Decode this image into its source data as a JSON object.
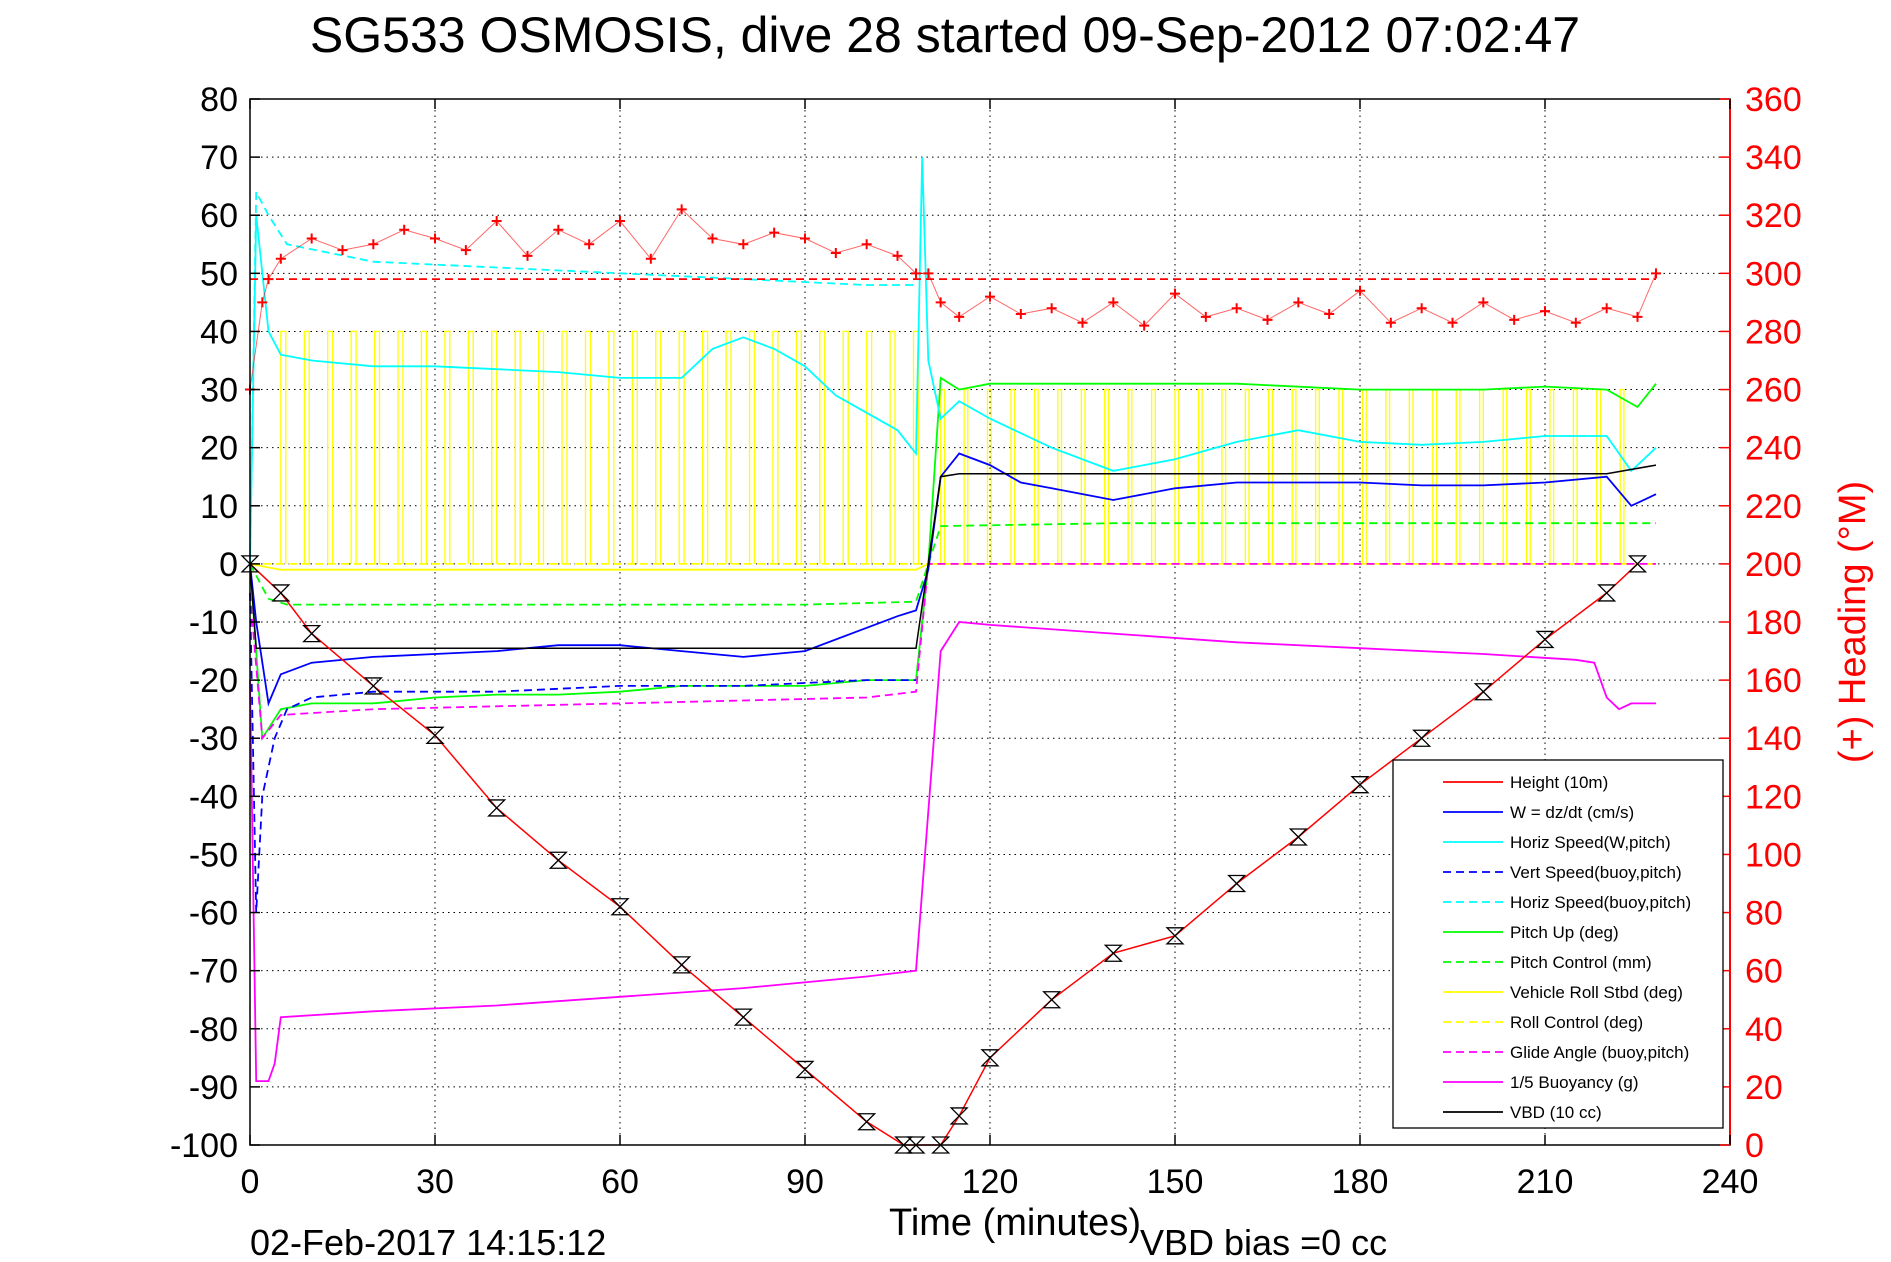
{
  "chart_data": {
    "type": "line",
    "title": "SG533 OSMOSIS, dive 28 started 09-Sep-2012 07:02:47",
    "xlabel": "Time (minutes)",
    "ylabel": "",
    "y2label": "(+) Heading (°M)",
    "footer_left": "02-Feb-2017 14:15:12",
    "footer_right": "VBD bias =0 cc",
    "xlim": [
      0,
      240
    ],
    "ylim": [
      -100,
      80
    ],
    "y2lim": [
      0,
      360
    ],
    "grid": true,
    "legend_position": "bottom-right",
    "x_ticks": [
      "0",
      "30",
      "60",
      "90",
      "120",
      "150",
      "180",
      "210",
      "240"
    ],
    "y_ticks": [
      "80",
      "70",
      "60",
      "50",
      "40",
      "30",
      "20",
      "10",
      "0",
      "-10",
      "-20",
      "-30",
      "-40",
      "-50",
      "-60",
      "-70",
      "-80",
      "-90",
      "-100"
    ],
    "y2_ticks": [
      "360",
      "340",
      "320",
      "300",
      "280",
      "260",
      "240",
      "220",
      "200",
      "180",
      "160",
      "140",
      "120",
      "100",
      "80",
      "60",
      "40",
      "20",
      "0"
    ],
    "colors": {
      "height": "#ff0000",
      "w": "#0000ff",
      "horiz_speed": "#00ffff",
      "vert_speed_buoy": "#0000ff",
      "horiz_speed_buoy": "#00ffff",
      "pitch_up": "#00ff00",
      "pitch_control": "#00ff00",
      "roll": "#ffff00",
      "roll_control": "#ffff00",
      "glide_angle": "#ff00ff",
      "buoyancy": "#ff00ff",
      "vbd": "#000000",
      "heading": "#ff0000",
      "right_axis": "#ff0000"
    },
    "series": [
      {
        "key": "height",
        "name": "Height (10m)",
        "style": "solid",
        "color": "#ff0000",
        "x": [
          0,
          5,
          10,
          20,
          30,
          40,
          50,
          60,
          70,
          80,
          90,
          100,
          106,
          108,
          112,
          115,
          120,
          130,
          140,
          150,
          160,
          170,
          180,
          190,
          200,
          210,
          220,
          225
        ],
        "y": [
          0,
          -5,
          -12,
          -21,
          -29.5,
          -42,
          -51,
          -59,
          -69,
          -78,
          -87,
          -96,
          -100,
          -100,
          -100,
          -95,
          -85,
          -75,
          -67,
          -64,
          -55,
          -47,
          -38,
          -30,
          -22,
          -13,
          -5,
          0
        ]
      },
      {
        "key": "w",
        "name": "W = dz/dt (cm/s)",
        "style": "solid",
        "color": "#0000ff",
        "x": [
          0,
          1,
          3,
          5,
          10,
          20,
          30,
          40,
          50,
          60,
          70,
          80,
          90,
          100,
          105,
          108,
          110,
          112,
          115,
          120,
          125,
          130,
          140,
          150,
          160,
          170,
          180,
          190,
          200,
          210,
          220,
          224,
          228
        ],
        "y": [
          0,
          -10,
          -24,
          -19,
          -17,
          -16,
          -15.5,
          -15,
          -14,
          -14,
          -15,
          -16,
          -15,
          -11,
          -9,
          -8,
          -1,
          15,
          19,
          17,
          14,
          13,
          11,
          13,
          14,
          14,
          14,
          13.5,
          13.5,
          14,
          15,
          10,
          12
        ]
      },
      {
        "key": "horiz_speed",
        "name": "Horiz Speed(W,pitch)",
        "style": "solid",
        "color": "#00ffff",
        "x": [
          0,
          1,
          3,
          5,
          10,
          20,
          30,
          40,
          50,
          60,
          70,
          75,
          80,
          85,
          90,
          95,
          100,
          105,
          108,
          109,
          110,
          111,
          112,
          115,
          120,
          130,
          140,
          150,
          160,
          170,
          180,
          190,
          200,
          210,
          220,
          224,
          228
        ],
        "y": [
          0,
          60,
          40,
          36,
          35,
          34,
          34,
          33.5,
          33,
          32,
          32,
          37,
          39,
          37,
          34,
          29,
          26,
          23,
          19,
          70,
          35,
          30,
          25,
          28,
          25,
          20,
          16,
          18,
          21,
          23,
          21,
          20.5,
          21,
          22,
          22,
          16,
          20
        ]
      },
      {
        "key": "vert_speed_buoy",
        "name": "Vert Speed(buoy,pitch)",
        "style": "dashed",
        "color": "#0000ff",
        "x": [
          0,
          1,
          2,
          4,
          6,
          10,
          20,
          40,
          60,
          80,
          100,
          108
        ],
        "y": [
          -5,
          -60,
          -40,
          -30,
          -25,
          -23,
          -22,
          -22,
          -21,
          -21,
          -20,
          -20
        ]
      },
      {
        "key": "horiz_speed_buoy",
        "name": "Horiz Speed(buoy,pitch)",
        "style": "dashed",
        "color": "#00ffff",
        "x": [
          0,
          1,
          3,
          6,
          20,
          40,
          60,
          80,
          100,
          108
        ],
        "y": [
          0,
          64,
          60,
          55,
          52,
          51,
          50,
          49,
          48,
          48
        ]
      },
      {
        "key": "pitch_up",
        "name": "Pitch Up (deg)",
        "style": "solid",
        "color": "#00ff00",
        "x": [
          0,
          2,
          5,
          10,
          20,
          30,
          40,
          50,
          60,
          70,
          80,
          90,
          100,
          108,
          110,
          112,
          115,
          120,
          140,
          160,
          180,
          200,
          210,
          220,
          225,
          228
        ],
        "y": [
          0,
          -30,
          -25,
          -24,
          -24,
          -23,
          -22.5,
          -22.5,
          -22,
          -21,
          -21,
          -21,
          -20,
          -20,
          0,
          32,
          30,
          31,
          31,
          31,
          30,
          30,
          30.5,
          30,
          27,
          31
        ]
      },
      {
        "key": "pitch_control",
        "name": "Pitch Control (mm)",
        "style": "dashed",
        "color": "#00ff00",
        "x": [
          0,
          3,
          6,
          30,
          60,
          90,
          108,
          110,
          112,
          140,
          170,
          200,
          228
        ],
        "y": [
          0,
          -6,
          -7,
          -7,
          -7,
          -7,
          -6.5,
          0,
          6.5,
          7,
          7,
          7,
          7
        ]
      },
      {
        "key": "roll",
        "name": "Vehicle Roll Stbd (deg)",
        "style": "solid",
        "color": "#ffff00",
        "x": [
          0,
          5,
          108,
          110,
          228
        ],
        "y": [
          0,
          -1,
          -1,
          0,
          0
        ],
        "oscillation_high": 40
      },
      {
        "key": "roll_control",
        "name": "Roll Control (deg)",
        "style": "dashed",
        "color": "#ffff00",
        "x": [
          0,
          108,
          110,
          228
        ],
        "y": [
          0,
          0,
          0,
          0
        ]
      },
      {
        "key": "glide_angle",
        "name": "Glide Angle (buoy,pitch)",
        "style": "dashed",
        "color": "#ff00ff",
        "x": [
          0,
          2,
          5,
          20,
          40,
          60,
          80,
          100,
          108,
          110,
          228
        ],
        "y": [
          -5,
          -30,
          -26,
          -25,
          -24.5,
          -24,
          -23.5,
          -23,
          -22,
          0,
          0
        ]
      },
      {
        "key": "buoyancy",
        "name": "1/5 Buoyancy (g)",
        "style": "solid",
        "color": "#ff00ff",
        "x": [
          0,
          1,
          3,
          4,
          5,
          20,
          40,
          60,
          80,
          100,
          108,
          112,
          115,
          120,
          140,
          160,
          180,
          200,
          215,
          218,
          220,
          222,
          224,
          228
        ],
        "y": [
          -20,
          -89,
          -89,
          -86,
          -78,
          -77,
          -76,
          -74.5,
          -73,
          -71,
          -70,
          -15,
          -10,
          -10.5,
          -12,
          -13.5,
          -14.5,
          -15.5,
          -16.5,
          -17,
          -23,
          -25,
          -24,
          -24
        ]
      },
      {
        "key": "vbd",
        "name": "VBD (10 cc)",
        "style": "solid",
        "color": "#000000",
        "x": [
          0,
          1,
          2,
          105,
          108,
          112,
          115,
          220,
          228
        ],
        "y": [
          0,
          -14.5,
          -14.5,
          -14.5,
          -14.5,
          15,
          15.5,
          15.5,
          17
        ]
      },
      {
        "key": "heading",
        "name": "",
        "style": "marker-plus",
        "color": "#ff0000",
        "axis": "right",
        "x": [
          0,
          2,
          3,
          5,
          10,
          15,
          20,
          25,
          30,
          35,
          40,
          45,
          50,
          55,
          60,
          65,
          70,
          75,
          80,
          85,
          90,
          95,
          100,
          105,
          108,
          110,
          112,
          115,
          120,
          125,
          130,
          135,
          140,
          145,
          150,
          155,
          160,
          165,
          170,
          175,
          180,
          185,
          190,
          195,
          200,
          205,
          210,
          215,
          220,
          225,
          228
        ],
        "y": [
          260,
          290,
          298,
          305,
          312,
          308,
          310,
          315,
          312,
          308,
          318,
          306,
          315,
          310,
          318,
          305,
          322,
          312,
          310,
          314,
          312,
          307,
          310,
          306,
          300,
          300,
          290,
          285,
          292,
          286,
          288,
          283,
          290,
          282,
          293,
          285,
          288,
          284,
          290,
          286,
          294,
          283,
          288,
          283,
          290,
          284,
          287,
          283,
          288,
          285,
          300
        ]
      },
      {
        "key": "heading_desired",
        "name": "",
        "style": "dashed",
        "color": "#ff0000",
        "axis": "right",
        "x": [
          0,
          110,
          112,
          228
        ],
        "y": [
          298,
          298,
          298,
          298
        ]
      }
    ]
  }
}
